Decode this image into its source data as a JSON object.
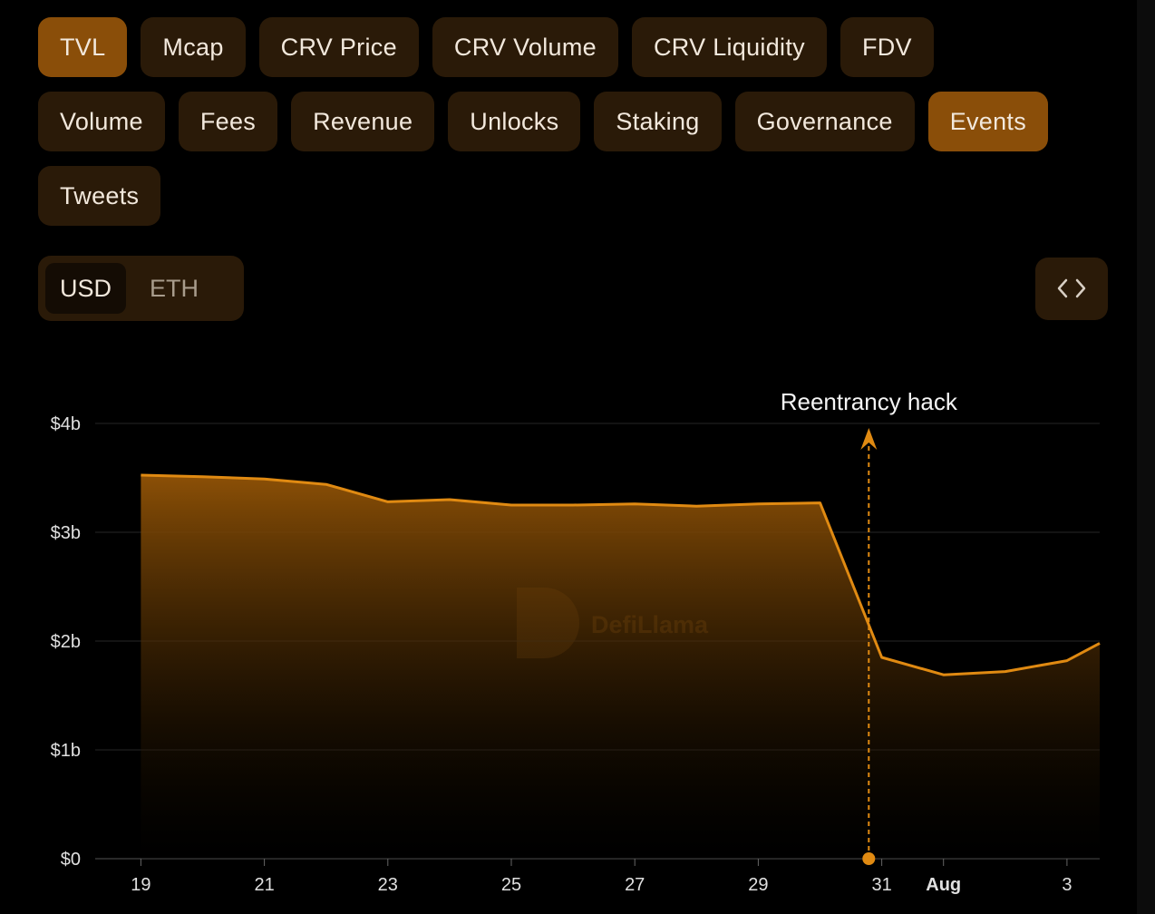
{
  "tabs": [
    [
      {
        "label": "TVL",
        "active": true
      },
      {
        "label": "Mcap"
      },
      {
        "label": "CRV Price"
      },
      {
        "label": "CRV Volume"
      },
      {
        "label": "CRV Liquidity"
      },
      {
        "label": "FDV"
      }
    ],
    [
      {
        "label": "Volume"
      },
      {
        "label": "Fees"
      },
      {
        "label": "Revenue"
      },
      {
        "label": "Unlocks"
      },
      {
        "label": "Staking"
      },
      {
        "label": "Governance"
      },
      {
        "label": "Events",
        "active": true
      }
    ],
    [
      {
        "label": "Tweets"
      }
    ]
  ],
  "currency": [
    {
      "label": "USD",
      "active": true
    },
    {
      "label": "ETH"
    }
  ],
  "chart_data": {
    "type": "area",
    "watermark": "DefiLlama",
    "x": [
      19,
      20,
      21,
      22,
      23,
      24,
      25,
      26,
      27,
      28,
      29,
      30,
      31,
      32,
      33,
      34,
      34.53
    ],
    "series": [
      {
        "color": "#e08a12",
        "values": [
          3.525,
          3.51,
          3.49,
          3.44,
          3.28,
          3.3,
          3.25,
          3.25,
          3.26,
          3.24,
          3.26,
          3.27,
          1.85,
          1.69,
          1.72,
          1.82,
          1.98
        ]
      }
    ],
    "xlim": [
      18.26,
      34.53
    ],
    "xticks": [
      19,
      21,
      23,
      25,
      27,
      29,
      31,
      {
        "value": 32,
        "label": "Aug"
      },
      {
        "value": 34,
        "label": "3"
      }
    ],
    "ylim": [
      0,
      4
    ],
    "yticks": [
      {
        "value": 0,
        "label": "$0"
      },
      {
        "value": 1,
        "label": "$1b"
      },
      {
        "value": 2,
        "label": "$2b"
      },
      {
        "value": 3,
        "label": "$3b"
      },
      {
        "value": 4,
        "label": "$4b"
      }
    ],
    "grid": true,
    "annotations": [
      {
        "text": "Reentrancy hack",
        "x": 30.79
      }
    ]
  }
}
